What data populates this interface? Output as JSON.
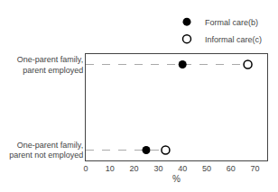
{
  "chart_data": {
    "type": "dot",
    "orientation": "horizontal",
    "categories": [
      "One-parent family,\nparent employed",
      "One-parent family,\nparent not employed"
    ],
    "series": [
      {
        "name": "Formal care(b)",
        "color": "#000000",
        "marker": "circle",
        "values": [
          40,
          25
        ]
      },
      {
        "name": "Informal care(c)",
        "color": "#000000",
        "marker": "circle-open",
        "values": [
          67,
          33
        ]
      }
    ],
    "line_style": "dashed",
    "color": "#aaaaaa",
    "xlabel": "%",
    "xlim": [
      0,
      75
    ],
    "xticks": [
      0,
      10,
      20,
      30,
      40,
      50,
      60,
      70
    ],
    "legend": "upper right",
    "grid": false
  }
}
